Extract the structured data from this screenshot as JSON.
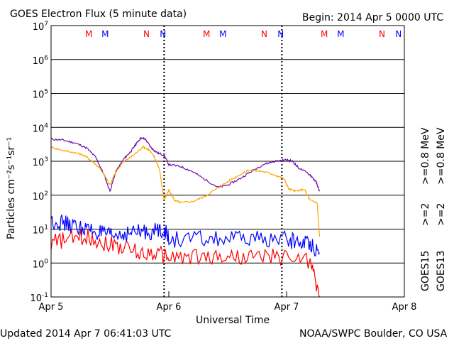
{
  "header": {
    "title": "GOES Electron Flux (5 minute data)",
    "begin": "Begin: 2014 Apr 5 0000 UTC"
  },
  "footer": {
    "updated": "Updated 2014 Apr  7 06:41:03 UTC",
    "credit": "NOAA/SWPC Boulder, CO USA"
  },
  "chart_data": {
    "type": "line",
    "title": "GOES Electron Flux (5 minute data)",
    "xlabel": "Universal Time",
    "ylabel": "Particles cm⁻²s⁻¹sr⁻¹",
    "yscale": "log",
    "ylim": [
      0.1,
      10000000
    ],
    "xlim_days": [
      0,
      3
    ],
    "x_ticks": [
      "Apr 5",
      "Apr 6",
      "Apr 7",
      "Apr 8"
    ],
    "y_ticks": [
      {
        "base": "10",
        "exp": "7"
      },
      {
        "base": "10",
        "exp": "6"
      },
      {
        "base": "10",
        "exp": "5"
      },
      {
        "base": "10",
        "exp": "4"
      },
      {
        "base": "10",
        "exp": "3"
      },
      {
        "base": "10",
        "exp": "2"
      },
      {
        "base": "10",
        "exp": "1"
      },
      {
        "base": "10",
        "exp": "0"
      },
      {
        "base": "10",
        "exp": "-1"
      }
    ],
    "threshold": 1000,
    "grid": true,
    "legend": [
      {
        "text": ">=0.8 MeV",
        "satellite": "GOES13",
        "color": "#ffa500"
      },
      {
        "text": ">=0.8 MeV",
        "satellite": "GOES15",
        "color": "#6a0dad"
      },
      {
        "text": ">=2",
        "satellite": "GOES13",
        "color": "#ff0000"
      },
      {
        "text": ">=2",
        "satellite": "GOES15",
        "color": "#0000ff"
      }
    ],
    "satellite_labels": [
      "GOES15",
      "GOES13"
    ],
    "markers": [
      {
        "label": "M",
        "color": "#ff0000",
        "day": 0.32
      },
      {
        "label": "M",
        "color": "#0000ff",
        "day": 0.46
      },
      {
        "label": "N",
        "color": "#ff0000",
        "day": 0.81
      },
      {
        "label": "N",
        "color": "#0000ff",
        "day": 0.95
      },
      {
        "label": "M",
        "color": "#ff0000",
        "day": 1.32
      },
      {
        "label": "M",
        "color": "#0000ff",
        "day": 1.46
      },
      {
        "label": "N",
        "color": "#ff0000",
        "day": 1.81
      },
      {
        "label": "N",
        "color": "#0000ff",
        "day": 1.95
      },
      {
        "label": "M",
        "color": "#ff0000",
        "day": 2.32
      },
      {
        "label": "M",
        "color": "#0000ff",
        "day": 2.46
      },
      {
        "label": "N",
        "color": "#ff0000",
        "day": 2.81
      },
      {
        "label": "N",
        "color": "#0000ff",
        "day": 2.95
      }
    ],
    "noon_lines_days": [
      0.96,
      1.96
    ],
    "series": [
      {
        "name": ">=0.8 MeV GOES15",
        "color": "#6a0dad",
        "points": [
          [
            0,
            4500
          ],
          [
            0.1,
            4200
          ],
          [
            0.2,
            3500
          ],
          [
            0.3,
            2500
          ],
          [
            0.38,
            1300
          ],
          [
            0.45,
            400
          ],
          [
            0.5,
            130
          ],
          [
            0.55,
            500
          ],
          [
            0.62,
            1200
          ],
          [
            0.68,
            2000
          ],
          [
            0.72,
            3200
          ],
          [
            0.76,
            4800
          ],
          [
            0.8,
            4500
          ],
          [
            0.85,
            2500
          ],
          [
            0.9,
            1800
          ],
          [
            0.96,
            1500
          ],
          [
            1.0,
            800
          ],
          [
            1.1,
            700
          ],
          [
            1.2,
            500
          ],
          [
            1.3,
            300
          ],
          [
            1.42,
            170
          ],
          [
            1.5,
            200
          ],
          [
            1.6,
            300
          ],
          [
            1.7,
            500
          ],
          [
            1.8,
            800
          ],
          [
            1.9,
            1000
          ],
          [
            2.0,
            1100
          ],
          [
            2.05,
            1000
          ],
          [
            2.1,
            650
          ],
          [
            2.2,
            400
          ],
          [
            2.25,
            250
          ],
          [
            2.28,
            130
          ]
        ]
      },
      {
        "name": ">=0.8 MeV GOES13",
        "color": "#ffa500",
        "points": [
          [
            0,
            2600
          ],
          [
            0.1,
            2100
          ],
          [
            0.2,
            1800
          ],
          [
            0.28,
            1500
          ],
          [
            0.35,
            1000
          ],
          [
            0.42,
            600
          ],
          [
            0.5,
            200
          ],
          [
            0.55,
            500
          ],
          [
            0.62,
            1000
          ],
          [
            0.7,
            1500
          ],
          [
            0.78,
            2700
          ],
          [
            0.83,
            2200
          ],
          [
            0.88,
            1300
          ],
          [
            0.92,
            600
          ],
          [
            0.96,
            70
          ],
          [
            1.0,
            140
          ],
          [
            1.05,
            70
          ],
          [
            1.1,
            60
          ],
          [
            1.2,
            65
          ],
          [
            1.3,
            90
          ],
          [
            1.4,
            150
          ],
          [
            1.5,
            250
          ],
          [
            1.6,
            400
          ],
          [
            1.68,
            550
          ],
          [
            1.8,
            500
          ],
          [
            1.9,
            400
          ],
          [
            1.98,
            300
          ],
          [
            2.02,
            150
          ],
          [
            2.08,
            130
          ],
          [
            2.15,
            150
          ],
          [
            2.2,
            70
          ],
          [
            2.26,
            60
          ],
          [
            2.28,
            6
          ]
        ]
      },
      {
        "name": ">=2 GOES15",
        "color": "#0000ff",
        "points": [
          [
            0,
            18
          ],
          [
            0.1,
            15
          ],
          [
            0.2,
            12
          ],
          [
            0.3,
            10
          ],
          [
            0.4,
            8
          ],
          [
            0.5,
            6
          ],
          [
            0.6,
            7
          ],
          [
            0.7,
            8
          ],
          [
            0.8,
            8
          ],
          [
            0.9,
            9
          ],
          [
            0.96,
            10
          ],
          [
            1.0,
            5
          ],
          [
            1.2,
            5
          ],
          [
            1.4,
            5
          ],
          [
            1.6,
            5
          ],
          [
            1.8,
            5
          ],
          [
            2.0,
            5
          ],
          [
            2.1,
            4
          ],
          [
            2.2,
            4
          ],
          [
            2.28,
            2
          ]
        ]
      },
      {
        "name": ">=2 GOES13",
        "color": "#ff0000",
        "points": [
          [
            0,
            4
          ],
          [
            0.15,
            5
          ],
          [
            0.3,
            6
          ],
          [
            0.45,
            4
          ],
          [
            0.6,
            3
          ],
          [
            0.75,
            2
          ],
          [
            0.9,
            2
          ],
          [
            1.0,
            1.5
          ],
          [
            1.2,
            1.5
          ],
          [
            1.4,
            1.5
          ],
          [
            1.6,
            1.5
          ],
          [
            1.8,
            1.5
          ],
          [
            2.0,
            1.5
          ],
          [
            2.2,
            1.2
          ],
          [
            2.28,
            0.1
          ]
        ]
      }
    ]
  }
}
